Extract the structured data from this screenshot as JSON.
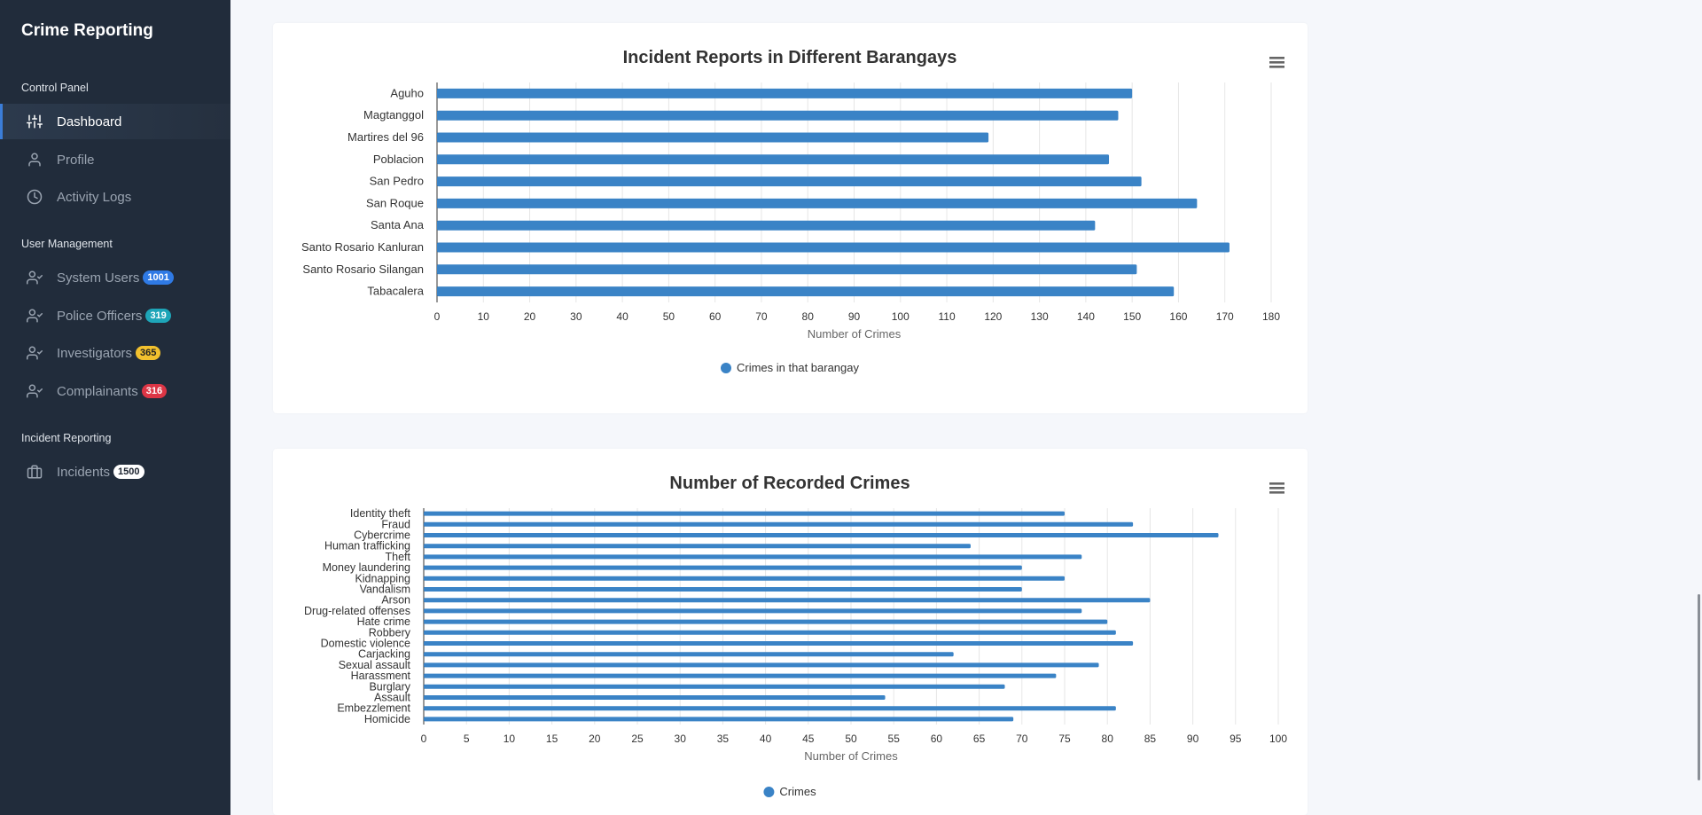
{
  "sidebar": {
    "brand": "Crime Reporting",
    "sections": {
      "control_panel": "Control Panel",
      "user_management": "User Management",
      "incident_reporting": "Incident Reporting"
    },
    "items": [
      {
        "label": "Dashboard",
        "icon": "sliders-icon",
        "active": true
      },
      {
        "label": "Profile",
        "icon": "user-icon"
      },
      {
        "label": "Activity Logs",
        "icon": "clock-icon"
      },
      {
        "label": "System Users",
        "icon": "user-check-icon",
        "badge": "1001",
        "badge_color": "#2f7ae5"
      },
      {
        "label": "Police Officers",
        "icon": "user-check-icon",
        "badge": "319",
        "badge_color": "#1ea5b8"
      },
      {
        "label": "Investigators",
        "icon": "user-check-icon",
        "badge": "365",
        "badge_color": "#f2c12e"
      },
      {
        "label": "Complainants",
        "icon": "user-check-icon",
        "badge": "316",
        "badge_color": "#dc3545"
      },
      {
        "label": "Incidents",
        "icon": "briefcase-icon",
        "badge": "1500",
        "badge_color": "#ffffff"
      }
    ]
  },
  "colors": {
    "bar": "#3a83c6",
    "sidebar_bg": "#212c3b",
    "accent": "#3b7dd8"
  },
  "chart_data": [
    {
      "type": "bar",
      "orientation": "horizontal",
      "title": "Incident Reports in Different Barangays",
      "xlabel": "Number of Crimes",
      "ylabel": "",
      "xlim": [
        0,
        180
      ],
      "x_ticks": [
        0,
        10,
        20,
        30,
        40,
        50,
        60,
        70,
        80,
        90,
        100,
        110,
        120,
        130,
        140,
        150,
        160,
        170,
        180
      ],
      "grid": true,
      "legend": "bottom-center",
      "categories": [
        "Aguho",
        "Magtanggol",
        "Martires del 96",
        "Poblacion",
        "San Pedro",
        "San Roque",
        "Santa Ana",
        "Santo Rosario Kanluran",
        "Santo Rosario Silangan",
        "Tabacalera"
      ],
      "series": [
        {
          "name": "Crimes in that barangay",
          "values": [
            150,
            147,
            119,
            145,
            152,
            164,
            142,
            171,
            151,
            159
          ]
        }
      ]
    },
    {
      "type": "bar",
      "orientation": "horizontal",
      "title": "Number of Recorded Crimes",
      "xlabel": "Number of Crimes",
      "ylabel": "",
      "xlim": [
        0,
        100
      ],
      "x_ticks": [
        0,
        5,
        10,
        15,
        20,
        25,
        30,
        35,
        40,
        45,
        50,
        55,
        60,
        65,
        70,
        75,
        80,
        85,
        90,
        95,
        100
      ],
      "grid": true,
      "legend": "bottom-center",
      "categories": [
        "Identity theft",
        "Fraud",
        "Cybercrime",
        "Human trafficking",
        "Theft",
        "Money laundering",
        "Kidnapping",
        "Vandalism",
        "Arson",
        "Drug-related offenses",
        "Hate crime",
        "Robbery",
        "Domestic violence",
        "Carjacking",
        "Sexual assault",
        "Harassment",
        "Burglary",
        "Assault",
        "Embezzlement",
        "Homicide"
      ],
      "series": [
        {
          "name": "Crimes",
          "values": [
            75,
            83,
            93,
            64,
            77,
            70,
            75,
            70,
            85,
            77,
            80,
            81,
            83,
            62,
            79,
            74,
            68,
            54,
            81,
            69
          ]
        }
      ]
    }
  ]
}
